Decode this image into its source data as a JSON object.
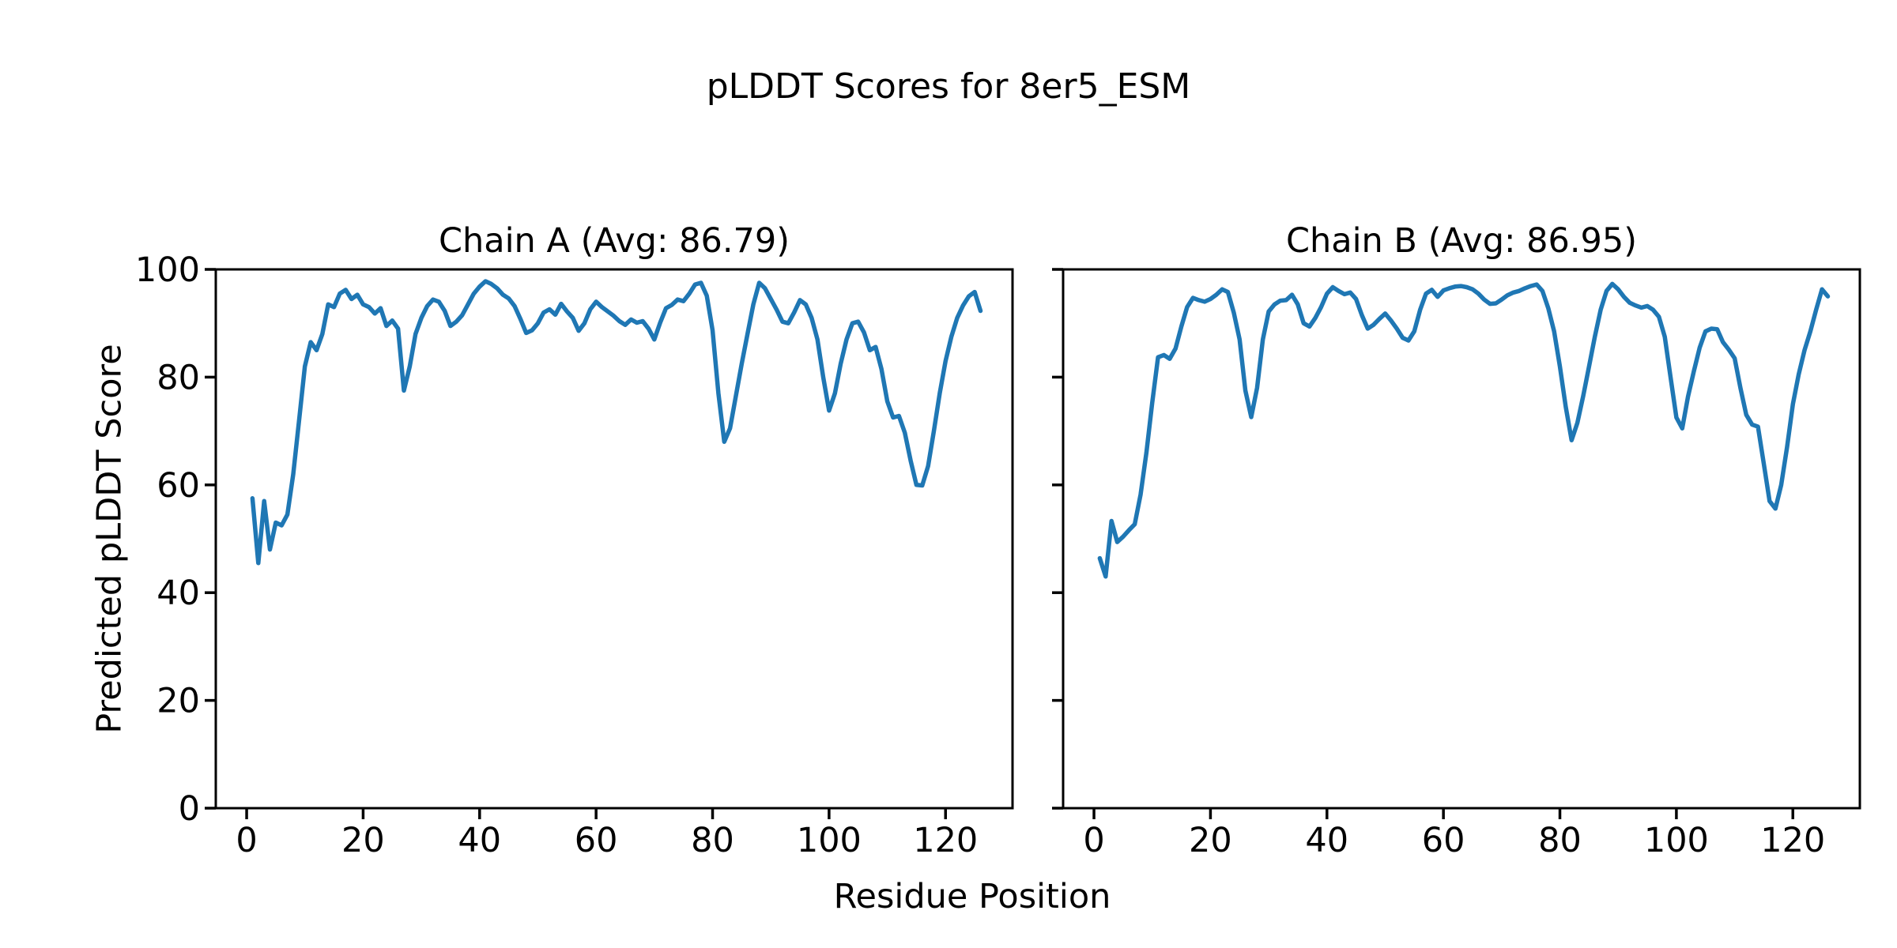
{
  "figure": {
    "title": "pLDDT Scores for 8er5_ESM",
    "xlabel": "Residue Position",
    "ylabel": "Predicted pLDDT Score",
    "background_color": "#ffffff",
    "text_color": "#000000",
    "spine_color": "#000000"
  },
  "chart_data": [
    {
      "type": "line",
      "chain": "A",
      "title": "Chain A (Avg: 86.79)",
      "avg_plddt": 86.79,
      "line_color": "#1f77b4",
      "xlabel": "Residue Position",
      "ylabel": "Predicted pLDDT Score",
      "xlim": [
        -5.3,
        131.5
      ],
      "ylim": [
        0,
        100
      ],
      "xticks": [
        0,
        20,
        40,
        60,
        80,
        100,
        120
      ],
      "yticks": [
        0,
        20,
        40,
        60,
        80,
        100
      ],
      "show_ytick_labels": true,
      "grid": false,
      "legend": "none",
      "x_start": 1,
      "values": [
        57.5,
        45.5,
        57,
        48,
        53,
        52.5,
        54.5,
        62,
        72,
        82,
        86.5,
        85,
        88,
        93.5,
        93,
        95.5,
        96.2,
        94.5,
        95.3,
        93.5,
        93,
        91.8,
        92.8,
        89.5,
        90.5,
        89,
        77.5,
        82,
        88,
        91,
        93.2,
        94.4,
        94,
        92.3,
        89.5,
        90.3,
        91.5,
        93.5,
        95.5,
        96.8,
        97.8,
        97.3,
        96.5,
        95.3,
        94.6,
        93.2,
        90.8,
        88.2,
        88.7,
        90,
        92,
        92.6,
        91.6,
        93.6,
        92.2,
        91,
        88.6,
        90,
        92.6,
        94,
        93,
        92.2,
        91.4,
        90.4,
        89.7,
        90.7,
        90.1,
        90.4,
        89,
        87,
        90.1,
        92.8,
        93.4,
        94.4,
        94.1,
        95.5,
        97.2,
        97.5,
        95.1,
        88.7,
        77,
        68,
        70.5,
        76.5,
        82.5,
        88,
        93.5,
        97.5,
        96.5,
        94.5,
        92.5,
        90.3,
        90,
        92,
        94.3,
        93.5,
        91,
        87,
        80,
        73.8,
        77,
        82.5,
        87,
        90,
        90.3,
        88.3,
        85,
        85.6,
        81.5,
        75.5,
        72.5,
        72.8,
        69.7,
        64.5,
        60,
        59.9,
        63.5,
        70,
        77,
        83,
        87.5,
        91,
        93.3,
        95,
        95.8,
        92.3
      ]
    },
    {
      "type": "line",
      "chain": "B",
      "title": "Chain B (Avg: 86.95)",
      "avg_plddt": 86.95,
      "line_color": "#1f77b4",
      "xlabel": "Residue Position",
      "ylabel": "Predicted pLDDT Score",
      "xlim": [
        -5.3,
        131.5
      ],
      "ylim": [
        0,
        100
      ],
      "xticks": [
        0,
        20,
        40,
        60,
        80,
        100,
        120
      ],
      "yticks": [
        0,
        20,
        40,
        60,
        80,
        100
      ],
      "show_ytick_labels": false,
      "grid": false,
      "legend": "none",
      "x_start": 1,
      "values": [
        46.4,
        43,
        53.3,
        49.4,
        50.4,
        51.6,
        52.7,
        58.2,
        66,
        75.2,
        83.7,
        84.1,
        83.4,
        85.3,
        89.4,
        93,
        94.7,
        94.3,
        94,
        94.5,
        95.3,
        96.3,
        95.8,
        92,
        87,
        77.5,
        72.6,
        78,
        87,
        92.2,
        93.5,
        94.2,
        94.3,
        95.3,
        93.5,
        90,
        89.4,
        91,
        93,
        95.5,
        96.7,
        96,
        95.4,
        95.7,
        94.5,
        91.5,
        89,
        89.7,
        90.8,
        91.8,
        90.5,
        89,
        87.3,
        86.8,
        88.5,
        92.5,
        95.5,
        96.2,
        94.9,
        96.1,
        96.5,
        96.8,
        96.9,
        96.7,
        96.3,
        95.5,
        94.4,
        93.6,
        93.7,
        94.4,
        95.2,
        95.7,
        96,
        96.5,
        96.9,
        97.2,
        96,
        92.8,
        88.5,
        82,
        74.5,
        68.3,
        71.5,
        76.5,
        82,
        87.5,
        92.5,
        96,
        97.3,
        96.3,
        94.9,
        93.8,
        93.3,
        92.9,
        93.2,
        92.5,
        91.2,
        87.5,
        80,
        72.5,
        70.5,
        76.4,
        81.1,
        85.5,
        88.5,
        89,
        88.9,
        86.5,
        85.1,
        83.5,
        78,
        73,
        71.2,
        70.8,
        64,
        57,
        55.6,
        60,
        67,
        75,
        80.5,
        85,
        88.5,
        92.5,
        96.3,
        95
      ]
    }
  ]
}
